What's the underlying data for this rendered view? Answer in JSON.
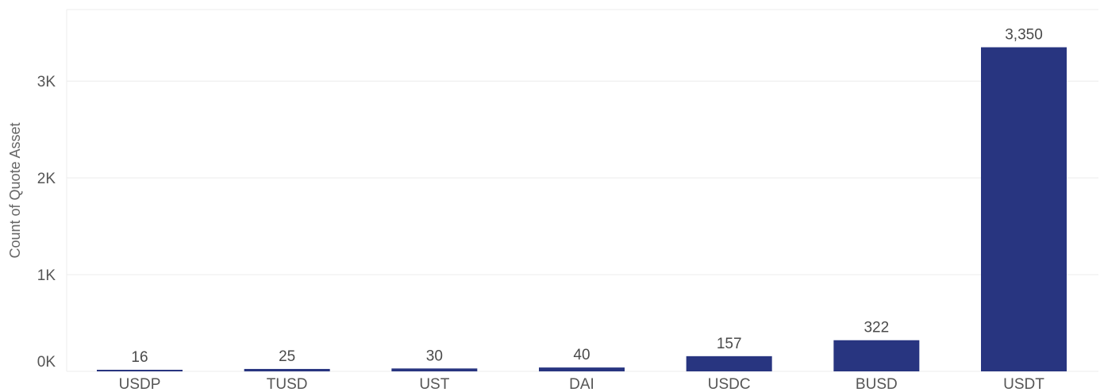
{
  "chart_data": {
    "type": "bar",
    "title": "",
    "xlabel": "",
    "ylabel": "Count of Quote Asset",
    "categories": [
      "USDP",
      "TUSD",
      "UST",
      "DAI",
      "USDC",
      "BUSD",
      "USDT"
    ],
    "values": [
      16,
      25,
      30,
      40,
      157,
      322,
      3350
    ],
    "value_labels": [
      "16",
      "25",
      "30",
      "40",
      "157",
      "322",
      "3,350"
    ],
    "ylim": [
      0,
      3740
    ],
    "yticks": [
      0,
      1000,
      2000,
      3000
    ],
    "ytick_labels": [
      "0K",
      "1K",
      "2K",
      "3K"
    ],
    "grid": true,
    "legend": "none",
    "bar_color": "#283580"
  }
}
